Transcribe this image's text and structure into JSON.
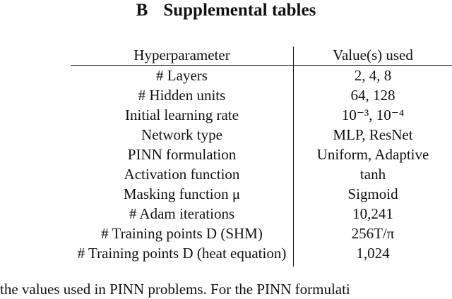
{
  "section": {
    "number": "B",
    "title": "Supplemental tables"
  },
  "table": {
    "headers": [
      "Hyperparameter",
      "Value(s) used"
    ],
    "rows": [
      [
        "# Layers",
        "2, 4, 8"
      ],
      [
        "# Hidden units",
        "64, 128"
      ],
      [
        "Initial learning rate",
        "10⁻³, 10⁻⁴"
      ],
      [
        "Network type",
        "MLP, ResNet"
      ],
      [
        "PINN formulation",
        "Uniform, Adaptive"
      ],
      [
        "Activation function",
        "tanh"
      ],
      [
        "Masking function μ",
        "Sigmoid"
      ],
      [
        "# Adam iterations",
        "10,241"
      ],
      [
        "# Training points D (SHM)",
        "256T/π"
      ],
      [
        "# Training points D (heat equation)",
        "1,024"
      ]
    ]
  },
  "caption": "the values used in PINN problems. For the PINN formulati"
}
